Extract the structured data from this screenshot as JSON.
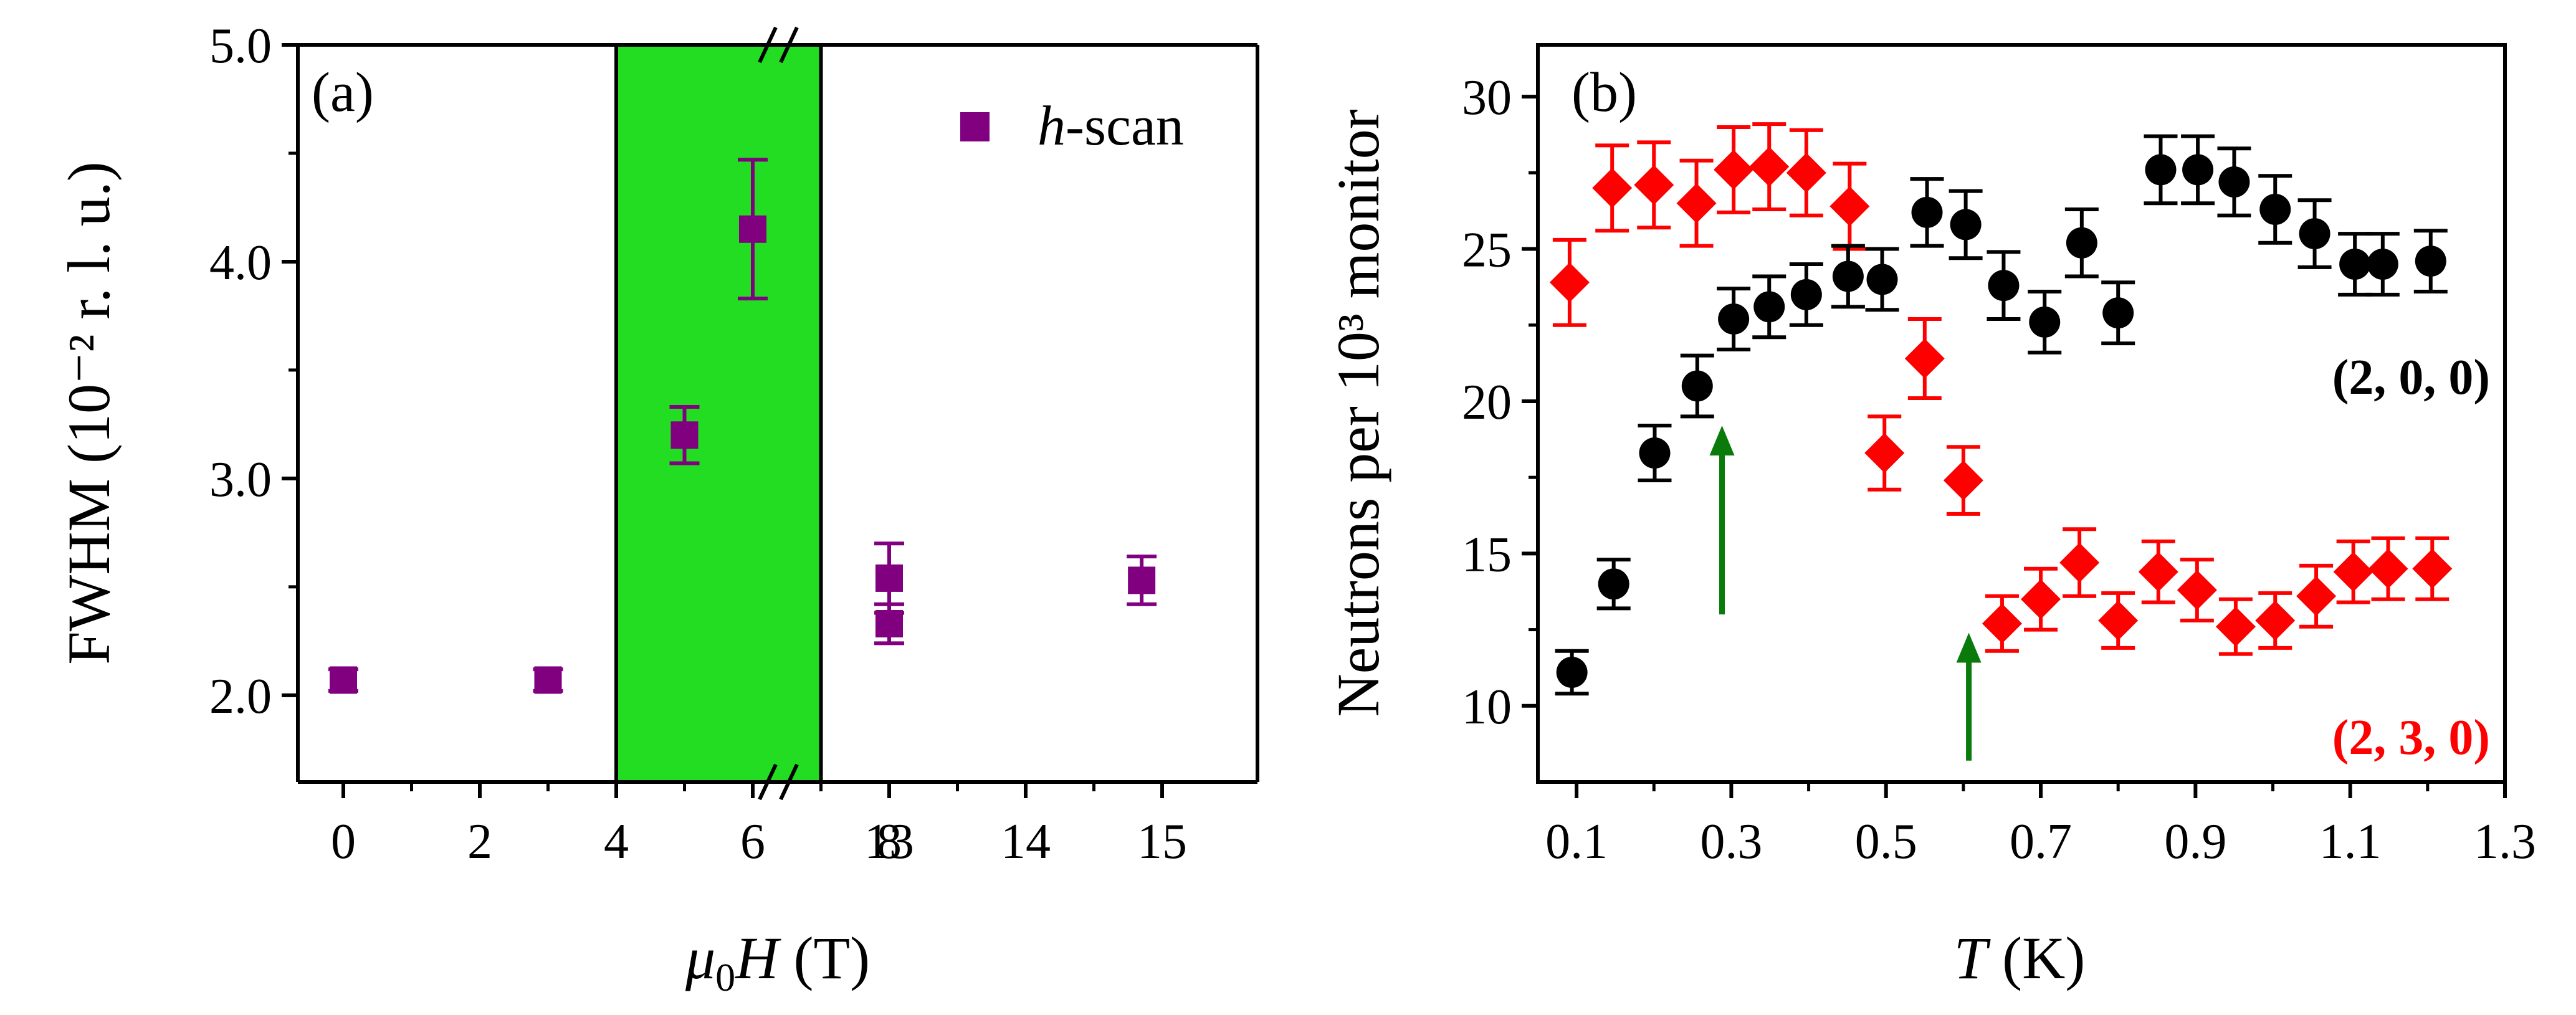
{
  "chart_data": [
    {
      "type": "scatter",
      "panel_label": "(a)",
      "ylabel": "FWHM (10⁻² r. l. u.)",
      "xlabel_symbol": "μ",
      "xlabel_sub": "0",
      "xlabel_var": "H",
      "xlabel_unit": " (T)",
      "ylim": [
        1.6,
        5.0
      ],
      "yticks": [
        "2.0",
        "3.0",
        "4.0",
        "5.0"
      ],
      "xticks": [
        "0",
        "2",
        "4",
        "6",
        "8",
        "13",
        "14",
        "15"
      ],
      "axis_break": "x between 8 and 13 (T)",
      "highlight_region": {
        "from": 4,
        "to": 7,
        "color": "#22dd22"
      },
      "legend": {
        "marker": "square",
        "italic": "h",
        "text": "-scan",
        "placement": "top-right"
      },
      "series": [
        {
          "name": "h-scan",
          "color": "#800080",
          "marker": "square",
          "points": [
            {
              "x": 0,
              "y": 2.07,
              "err": 0.05
            },
            {
              "x": 3,
              "y": 2.07,
              "err": 0.05
            },
            {
              "x": 5,
              "y": 3.2,
              "err": 0.13
            },
            {
              "x": 6,
              "y": 4.15,
              "err": 0.32
            },
            {
              "x": 8,
              "y": 2.54,
              "err": 0.16
            },
            {
              "x": 13,
              "y": 2.33,
              "err": 0.09
            },
            {
              "x": 14.85,
              "y": 2.53,
              "err": 0.11
            }
          ]
        }
      ]
    },
    {
      "type": "scatter",
      "panel_label": "(b)",
      "ylabel": "Neutrons per 10³ monitor",
      "xlabel_var": "T",
      "xlabel_unit": " (K)",
      "xlim": [
        0.05,
        1.3
      ],
      "ylim": [
        7.5,
        31.7
      ],
      "xticks": [
        "0.1",
        "0.3",
        "0.5",
        "0.7",
        "0.9",
        "1.1",
        "1.3"
      ],
      "yticks": [
        "10",
        "15",
        "20",
        "25",
        "30"
      ],
      "arrows": [
        {
          "x": 0.288,
          "y_tail": 13.0,
          "y_head": 19.2,
          "color": "#0a7a0a"
        },
        {
          "x": 0.607,
          "y_tail": 8.2,
          "y_head": 12.4,
          "color": "#0a7a0a"
        }
      ],
      "series": [
        {
          "name": "(2, 0, 0)",
          "color": "#000000",
          "marker": "circle",
          "label_placement": "right, middle",
          "points": [
            {
              "x": 0.094,
              "y": 11.1,
              "err": 0.7
            },
            {
              "x": 0.148,
              "y": 14.0,
              "err": 0.8
            },
            {
              "x": 0.201,
              "y": 18.3,
              "err": 0.9
            },
            {
              "x": 0.256,
              "y": 20.5,
              "err": 1.0
            },
            {
              "x": 0.303,
              "y": 22.7,
              "err": 1.0
            },
            {
              "x": 0.349,
              "y": 23.1,
              "err": 1.0
            },
            {
              "x": 0.397,
              "y": 23.5,
              "err": 1.0
            },
            {
              "x": 0.451,
              "y": 24.1,
              "err": 1.0
            },
            {
              "x": 0.495,
              "y": 24.0,
              "err": 1.0
            },
            {
              "x": 0.553,
              "y": 26.2,
              "err": 1.1
            },
            {
              "x": 0.603,
              "y": 25.8,
              "err": 1.1
            },
            {
              "x": 0.652,
              "y": 23.8,
              "err": 1.1
            },
            {
              "x": 0.705,
              "y": 22.6,
              "err": 1.0
            },
            {
              "x": 0.753,
              "y": 25.2,
              "err": 1.1
            },
            {
              "x": 0.8,
              "y": 22.9,
              "err": 1.0
            },
            {
              "x": 0.855,
              "y": 27.6,
              "err": 1.1
            },
            {
              "x": 0.903,
              "y": 27.6,
              "err": 1.1
            },
            {
              "x": 0.95,
              "y": 27.2,
              "err": 1.1
            },
            {
              "x": 1.003,
              "y": 26.3,
              "err": 1.1
            },
            {
              "x": 1.054,
              "y": 25.5,
              "err": 1.1
            },
            {
              "x": 1.106,
              "y": 24.5,
              "err": 1.0
            },
            {
              "x": 1.142,
              "y": 24.5,
              "err": 1.0
            },
            {
              "x": 1.204,
              "y": 24.6,
              "err": 1.0
            }
          ]
        },
        {
          "name": "(2, 3, 0)",
          "color": "#ff0000",
          "marker": "diamond",
          "label_placement": "bottom-right",
          "points": [
            {
              "x": 0.091,
              "y": 23.9,
              "err": 1.4
            },
            {
              "x": 0.146,
              "y": 27.0,
              "err": 1.4
            },
            {
              "x": 0.2,
              "y": 27.1,
              "err": 1.4
            },
            {
              "x": 0.255,
              "y": 26.5,
              "err": 1.4
            },
            {
              "x": 0.303,
              "y": 27.6,
              "err": 1.4
            },
            {
              "x": 0.349,
              "y": 27.7,
              "err": 1.4
            },
            {
              "x": 0.397,
              "y": 27.5,
              "err": 1.4
            },
            {
              "x": 0.453,
              "y": 26.4,
              "err": 1.4
            },
            {
              "x": 0.498,
              "y": 18.3,
              "err": 1.2
            },
            {
              "x": 0.55,
              "y": 21.4,
              "err": 1.3
            },
            {
              "x": 0.6,
              "y": 17.4,
              "err": 1.1
            },
            {
              "x": 0.65,
              "y": 12.7,
              "err": 0.9
            },
            {
              "x": 0.7,
              "y": 13.5,
              "err": 1.0
            },
            {
              "x": 0.75,
              "y": 14.7,
              "err": 1.1
            },
            {
              "x": 0.8,
              "y": 12.8,
              "err": 0.9
            },
            {
              "x": 0.852,
              "y": 14.4,
              "err": 1.0
            },
            {
              "x": 0.902,
              "y": 13.8,
              "err": 1.0
            },
            {
              "x": 0.952,
              "y": 12.6,
              "err": 0.9
            },
            {
              "x": 1.003,
              "y": 12.8,
              "err": 0.9
            },
            {
              "x": 1.056,
              "y": 13.6,
              "err": 1.0
            },
            {
              "x": 1.104,
              "y": 14.4,
              "err": 1.0
            },
            {
              "x": 1.149,
              "y": 14.5,
              "err": 1.0
            },
            {
              "x": 1.206,
              "y": 14.5,
              "err": 1.0
            }
          ]
        }
      ]
    }
  ]
}
